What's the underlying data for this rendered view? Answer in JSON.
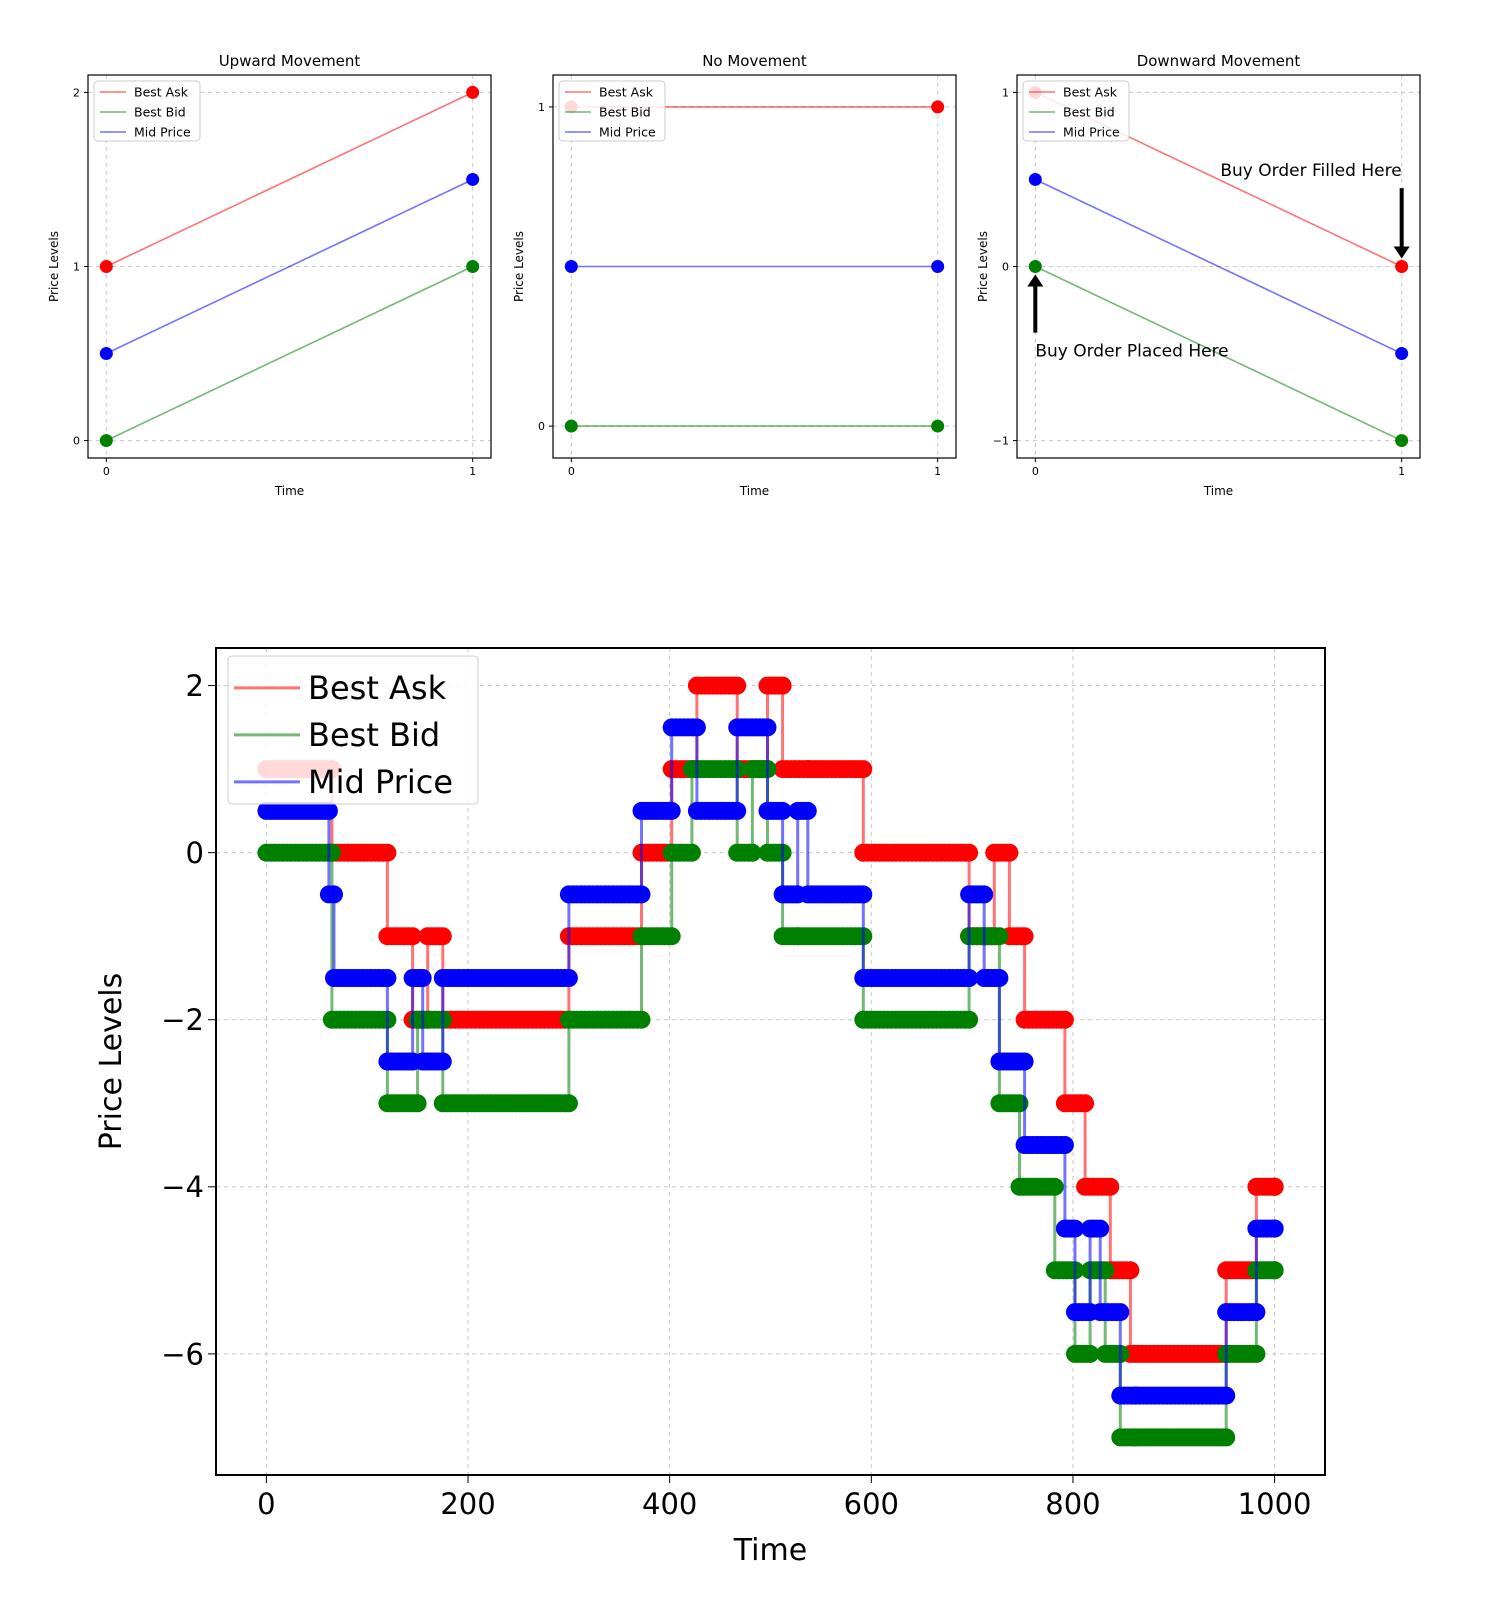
{
  "colors": {
    "ask": "#ff0000",
    "bid": "#008000",
    "mid": "#0000ff"
  },
  "chart_data": [
    {
      "type": "line",
      "title": "Upward Movement",
      "xlabel": "Time",
      "ylabel": "Price Levels",
      "xlim": [
        -0.05,
        1.05
      ],
      "ylim": [
        -0.1,
        2.1
      ],
      "xticks": [
        0,
        1
      ],
      "yticks": [
        0,
        1,
        2
      ],
      "ytick_labels": [
        "0",
        "1",
        "2"
      ],
      "grid": true,
      "legend_position": "upper-left",
      "series": [
        {
          "name": "Best Ask",
          "color": "#ff0000",
          "x": [
            0,
            1
          ],
          "values": [
            1,
            2
          ]
        },
        {
          "name": "Best Bid",
          "color": "#008000",
          "x": [
            0,
            1
          ],
          "values": [
            0,
            1
          ]
        },
        {
          "name": "Mid Price",
          "color": "#0000ff",
          "x": [
            0,
            1
          ],
          "values": [
            0.5,
            1.5
          ]
        }
      ],
      "annotations": []
    },
    {
      "type": "line",
      "title": "No Movement",
      "xlabel": "Time",
      "ylabel": "Price Levels",
      "xlim": [
        -0.05,
        1.05
      ],
      "ylim": [
        -0.1,
        1.1
      ],
      "xticks": [
        0,
        1
      ],
      "yticks": [
        0,
        1
      ],
      "ytick_labels": [
        "0",
        "1"
      ],
      "grid": true,
      "legend_position": "upper-left",
      "series": [
        {
          "name": "Best Ask",
          "color": "#ff0000",
          "x": [
            0,
            1
          ],
          "values": [
            1,
            1
          ]
        },
        {
          "name": "Best Bid",
          "color": "#008000",
          "x": [
            0,
            1
          ],
          "values": [
            0,
            0
          ]
        },
        {
          "name": "Mid Price",
          "color": "#0000ff",
          "x": [
            0,
            1
          ],
          "values": [
            0.5,
            0.5
          ]
        }
      ],
      "annotations": []
    },
    {
      "type": "line",
      "title": "Downward Movement",
      "xlabel": "Time",
      "ylabel": "Price Levels",
      "xlim": [
        -0.05,
        1.05
      ],
      "ylim": [
        -1.1,
        1.1
      ],
      "xticks": [
        0,
        1
      ],
      "yticks": [
        -1,
        0,
        1
      ],
      "ytick_labels": [
        "−1",
        "0",
        "1"
      ],
      "grid": true,
      "legend_position": "upper-left",
      "series": [
        {
          "name": "Best Ask",
          "color": "#ff0000",
          "x": [
            0,
            1
          ],
          "values": [
            1,
            0
          ]
        },
        {
          "name": "Best Bid",
          "color": "#008000",
          "x": [
            0,
            1
          ],
          "values": [
            0,
            -1
          ]
        },
        {
          "name": "Mid Price",
          "color": "#0000ff",
          "x": [
            0,
            1
          ],
          "values": [
            0.5,
            -0.5
          ]
        }
      ],
      "annotations": [
        {
          "text": "Buy Order Filled Here",
          "x": 1,
          "y": 0,
          "from_x": 1,
          "from_y": 0.45,
          "anchor": "above-left"
        },
        {
          "text": "Buy Order Placed Here",
          "x": 0,
          "y": 0,
          "from_x": 0,
          "from_y": -0.38,
          "anchor": "below-right"
        }
      ]
    },
    {
      "type": "line",
      "title": "",
      "xlabel": "Time",
      "ylabel": "Price Levels",
      "xlim": [
        -50,
        1050
      ],
      "ylim": [
        -7.45,
        2.45
      ],
      "xticks": [
        0,
        200,
        400,
        600,
        800,
        1000
      ],
      "yticks": [
        2,
        0,
        -2,
        -4,
        -6
      ],
      "ytick_labels": [
        "2",
        "0",
        "−2",
        "−4",
        "−6"
      ],
      "grid": true,
      "legend_position": "upper-left",
      "step": true,
      "series": [
        {
          "name": "Best Ask",
          "color": "#ff0000",
          "x": [
            0,
            65,
            120,
            145,
            160,
            175,
            300,
            372,
            402,
            427,
            467,
            497,
            512,
            537,
            592,
            697,
            722,
            737,
            752,
            792,
            812,
            837,
            857,
            952,
            982,
            1000
          ],
          "values": [
            1,
            0,
            -1,
            -2,
            -1,
            -2,
            -1,
            0,
            1,
            2,
            1,
            2,
            1,
            1,
            0,
            -1,
            0,
            -1,
            -2,
            -3,
            -4,
            -5,
            -6,
            -5,
            -4,
            -4
          ]
        },
        {
          "name": "Best Bid",
          "color": "#008000",
          "x": [
            0,
            65,
            120,
            150,
            175,
            300,
            372,
            402,
            422,
            467,
            482,
            497,
            512,
            527,
            592,
            697,
            712,
            727,
            747,
            782,
            802,
            817,
            832,
            847,
            862,
            952,
            982,
            1000
          ],
          "values": [
            0,
            -2,
            -3,
            -2,
            -3,
            -2,
            -1,
            0,
            1,
            0,
            1,
            0,
            -1,
            -1,
            -2,
            -1,
            -1,
            -3,
            -4,
            -5,
            -6,
            -5,
            -6,
            -7,
            -7,
            -6,
            -5,
            -5
          ]
        },
        {
          "name": "Mid Price",
          "color": "#0000ff",
          "x": [
            0,
            62,
            67,
            120,
            145,
            155,
            175,
            300,
            372,
            402,
            427,
            467,
            497,
            512,
            527,
            537,
            592,
            697,
            712,
            727,
            752,
            792,
            802,
            817,
            827,
            847,
            862,
            952,
            982,
            1000
          ],
          "values": [
            0.5,
            -0.5,
            -1.5,
            -2.5,
            -1.5,
            -2.5,
            -1.5,
            -0.5,
            0.5,
            1.5,
            0.5,
            1.5,
            0.5,
            -0.5,
            0.5,
            -0.5,
            -1.5,
            -0.5,
            -1.5,
            -2.5,
            -3.5,
            -4.5,
            -5.5,
            -4.5,
            -5.5,
            -6.5,
            -6.5,
            -5.5,
            -4.5,
            -4.5
          ]
        }
      ]
    }
  ]
}
